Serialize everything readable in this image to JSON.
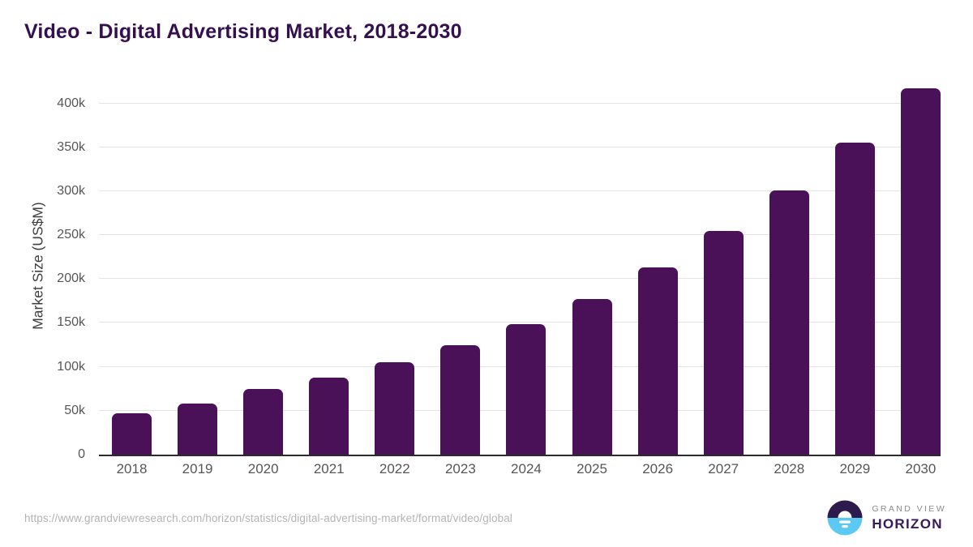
{
  "title": "Video - Digital Advertising Market, 2018-2030",
  "chart_data": {
    "type": "bar",
    "title": "Video - Digital Advertising Market, 2018-2030",
    "categories": [
      "2018",
      "2019",
      "2020",
      "2021",
      "2022",
      "2023",
      "2024",
      "2025",
      "2026",
      "2027",
      "2028",
      "2029",
      "2030"
    ],
    "values": [
      47500,
      58000,
      74500,
      87500,
      105000,
      125000,
      148500,
      177500,
      213500,
      255000,
      301000,
      355500,
      417000
    ],
    "xlabel": "",
    "ylabel": "Market Size (US$M)",
    "unit": "US$M",
    "ylim": [
      0,
      430000
    ],
    "ytick_step": 50000,
    "yticks": [
      {
        "value": 0,
        "label": "0"
      },
      {
        "value": 50000,
        "label": "50k"
      },
      {
        "value": 100000,
        "label": "100k"
      },
      {
        "value": 150000,
        "label": "150k"
      },
      {
        "value": 200000,
        "label": "200k"
      },
      {
        "value": 250000,
        "label": "250k"
      },
      {
        "value": 300000,
        "label": "300k"
      },
      {
        "value": 350000,
        "label": "350k"
      },
      {
        "value": 400000,
        "label": "400k"
      }
    ],
    "grid": true,
    "legend": "none",
    "bar_corner_radius": 7
  },
  "footer": {
    "source_url": "https://www.grandviewresearch.com/horizon/statistics/digital-advertising-market/format/video/global",
    "logo": {
      "line1": "GRAND VIEW",
      "line2": "HORIZON",
      "mark": "sun-over-horizon-circle"
    }
  },
  "colors": {
    "title": "#34104e",
    "bar": "#4a1158",
    "axis_line": "#2b2b2b",
    "gridline": "#e4e4e4",
    "tick_label": "#565656",
    "axis_title": "#3f3f3f",
    "source_text": "#b4b4b4",
    "logo_dark": "#2e1b4d",
    "logo_blue": "#5bc9f2",
    "logo_gray": "#8b8b8e",
    "logo_purple": "#371a56"
  }
}
